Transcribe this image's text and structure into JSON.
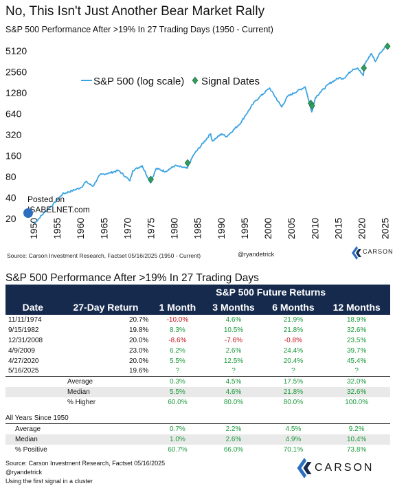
{
  "title": "No, This Isn't Just Another Bear Market Rally",
  "subtitle": "S&P 500 Performance After >19% In 27 Trading Days (1950 - Current)",
  "posted_on": "Posted on",
  "posted_site": "ISABELNET.com",
  "chart_source": "Source: Carson Investment Research, Factset 05/16/2025 (1950 - Current)",
  "handle": "@ryandetrick",
  "brand": "CARSON",
  "colors": {
    "line": "#3aa3e3",
    "marker": "#2e9e5e",
    "header": "#162a4e",
    "positive": "#1a9a3a",
    "negative": "#c3121c"
  },
  "chart_data": {
    "type": "line",
    "y_scale": "log",
    "xlim": [
      1950,
      2025.5
    ],
    "ylim": [
      20,
      5120
    ],
    "x_ticks": [
      1950,
      1955,
      1960,
      1965,
      1970,
      1975,
      1980,
      1985,
      1990,
      1995,
      2000,
      2005,
      2010,
      2015,
      2020,
      2025
    ],
    "y_ticks": [
      20,
      40,
      80,
      160,
      320,
      640,
      1280,
      2560,
      5120
    ],
    "series": [
      {
        "name": "S&P 500 (log scale)",
        "x": [
          1950,
          1952,
          1954,
          1956,
          1958,
          1960,
          1961,
          1962.5,
          1964,
          1966,
          1968,
          1970.4,
          1971,
          1973,
          1974.8,
          1976,
          1978,
          1980,
          1982.6,
          1984,
          1987.6,
          1988,
          1990,
          1991,
          1994,
          1995,
          1997,
          1998,
          2000.2,
          2002.8,
          2004,
          2007.8,
          2009.2,
          2010,
          2011,
          2013,
          2015,
          2016,
          2018,
          2019,
          2020.2,
          2020.5,
          2021.9,
          2022.8,
          2023.5,
          2024,
          2025,
          2025.3
        ],
        "y": [
          17,
          24,
          32,
          45,
          50,
          56,
          68,
          58,
          85,
          90,
          98,
          70,
          98,
          115,
          65,
          105,
          95,
          115,
          105,
          165,
          330,
          260,
          330,
          300,
          470,
          600,
          950,
          1100,
          1500,
          800,
          1130,
          1560,
          680,
          1100,
          1300,
          1750,
          2100,
          2050,
          2800,
          2900,
          2250,
          3300,
          4700,
          3600,
          4500,
          4900,
          6000,
          5900
        ]
      },
      {
        "name": "Signal Dates",
        "x": [
          1974.86,
          1982.71,
          2008.99,
          2009.27,
          2020.32,
          2025.37
        ],
        "y": [
          73,
          126,
          903,
          830,
          2900,
          5959
        ]
      }
    ],
    "legend": "top-center",
    "grid": false
  },
  "table": {
    "title": "S&P 500 Performance After >19% In 27 Trading Days",
    "group_header": "S&P 500 Future Returns",
    "columns": [
      "Date",
      "27-Day Return",
      "1 Month",
      "3 Months",
      "6 Months",
      "12 Months"
    ],
    "rows": [
      {
        "date": "11/11/1974",
        "ret": "20.7%",
        "m1": "-10.0%",
        "m3": "4.6%",
        "m6": "21.9%",
        "m12": "18.9%"
      },
      {
        "date": "9/15/1982",
        "ret": "19.8%",
        "m1": "8.3%",
        "m3": "10.5%",
        "m6": "21.8%",
        "m12": "32.6%"
      },
      {
        "date": "12/31/2008",
        "ret": "20.0%",
        "m1": "-8.6%",
        "m3": "-7.6%",
        "m6": "-0.8%",
        "m12": "23.5%"
      },
      {
        "date": "4/9/2009",
        "ret": "23.0%",
        "m1": "6.2%",
        "m3": "2.6%",
        "m6": "24.4%",
        "m12": "39.7%"
      },
      {
        "date": "4/27/2020",
        "ret": "20.0%",
        "m1": "5.5%",
        "m3": "12.5%",
        "m6": "20.4%",
        "m12": "45.4%"
      },
      {
        "date": "5/16/2025",
        "ret": "19.6%",
        "m1": "?",
        "m3": "?",
        "m6": "?",
        "m12": "?"
      }
    ],
    "summary": [
      {
        "label": "Average",
        "m1": "0.3%",
        "m3": "4.5%",
        "m6": "17.5%",
        "m12": "32.0%"
      },
      {
        "label": "Median",
        "m1": "5.5%",
        "m3": "4.6%",
        "m6": "21.8%",
        "m12": "32.6%"
      },
      {
        "label": "% Higher",
        "m1": "60.0%",
        "m3": "80.0%",
        "m6": "80.0%",
        "m12": "100.0%"
      }
    ],
    "all_years_title": "All Years Since 1950",
    "all_years": [
      {
        "label": "Average",
        "m1": "0.7%",
        "m3": "2.2%",
        "m6": "4.5%",
        "m12": "9.2%"
      },
      {
        "label": "Median",
        "m1": "1.0%",
        "m3": "2.6%",
        "m6": "4.9%",
        "m12": "10.4%"
      },
      {
        "label": "% Positive",
        "m1": "60.7%",
        "m3": "66.0%",
        "m6": "70.1%",
        "m12": "73.8%"
      }
    ]
  },
  "footer": {
    "source": "Source: Carson Investment Research, Factset 05/16/2025",
    "handle": "@ryandetrick",
    "note": "Using the first signal in a cluster"
  }
}
